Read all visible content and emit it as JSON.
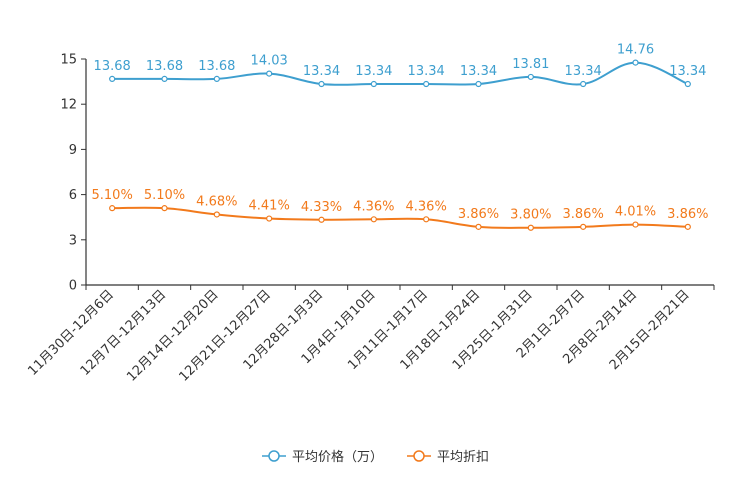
{
  "chart_data": {
    "type": "line",
    "title": "",
    "xlabel": "",
    "ylabel": "",
    "ylim": [
      0,
      15
    ],
    "yticks": [
      "0",
      "3",
      "6",
      "9",
      "12",
      "15"
    ],
    "grid": false,
    "legend_position": "bottom-center",
    "categories": [
      "11月30日-12月6日",
      "12月7日-12月13日",
      "12月14日-12月20日",
      "12月21日-12月27日",
      "12月28日-1月3日",
      "1月4日-1月10日",
      "1月11日-1月17日",
      "1月18日-1月24日",
      "1月25日-1月31日",
      "2月1日-2月7日",
      "2月8日-2月14日",
      "2月15日-2月21日"
    ],
    "series": [
      {
        "name": "平均价格（万）",
        "color": "#3e9fcf",
        "values": [
          13.68,
          13.68,
          13.68,
          14.03,
          13.34,
          13.34,
          13.34,
          13.34,
          13.81,
          13.34,
          14.76,
          13.34
        ],
        "labels": [
          "13.68",
          "13.68",
          "13.68",
          "14.03",
          "13.34",
          "13.34",
          "13.34",
          "13.34",
          "13.81",
          "13.34",
          "14.76",
          "13.34"
        ]
      },
      {
        "name": "平均折扣",
        "color": "#f27a1c",
        "values": [
          5.1,
          5.1,
          4.68,
          4.41,
          4.33,
          4.36,
          4.36,
          3.86,
          3.8,
          3.86,
          4.01,
          3.86
        ],
        "labels": [
          "5.10%",
          "5.10%",
          "4.68%",
          "4.41%",
          "4.33%",
          "4.36%",
          "4.36%",
          "3.86%",
          "3.80%",
          "3.86%",
          "4.01%",
          "3.86%"
        ]
      }
    ]
  }
}
